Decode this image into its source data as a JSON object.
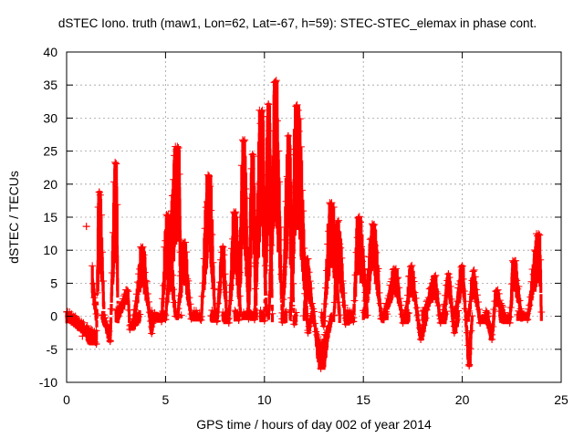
{
  "chart_data": {
    "type": "scatter",
    "title": "dSTEC Iono. truth (maw1, Lon=62, Lat=-67, h=59): STEC-STEC_elemax in phase cont.",
    "xlabel": "GPS time / hours of day 002 of year 2014",
    "ylabel": "dSTEC  / TECUs",
    "xlim": [
      0,
      25
    ],
    "ylim": [
      -10,
      40
    ],
    "xticks": [
      0,
      5,
      10,
      15,
      20,
      25
    ],
    "yticks": [
      -10,
      -5,
      0,
      5,
      10,
      15,
      20,
      25,
      30,
      35,
      40
    ],
    "grid": true,
    "marker": "plus",
    "series": [
      {
        "name": "dSTEC",
        "color": "#ff0000",
        "arcs": [
          {
            "start": 0.0,
            "peak_t": 1.65,
            "peak": 18.8,
            "end": 1.9,
            "min": -4.2,
            "dip_t": 1.5
          },
          {
            "start": 1.3,
            "peak_t": 1.0,
            "peak": 13.6,
            "end": 1.5,
            "min": -3.0,
            "dip_t": 0.8
          },
          {
            "start": 1.8,
            "peak_t": 2.5,
            "peak": 23.1,
            "end": 2.6,
            "min": -3.8,
            "dip_t": 2.2
          },
          {
            "start": 2.5,
            "peak_t": 3.1,
            "peak": 3.8,
            "end": 3.7,
            "min": -2.0,
            "dip_t": 3.2
          },
          {
            "start": 3.4,
            "peak_t": 3.8,
            "peak": 10.3,
            "end": 4.4,
            "min": -2.6,
            "dip_t": 4.3
          },
          {
            "start": 4.3,
            "peak_t": 5.1,
            "peak": 15.2,
            "end": 5.5,
            "min": -0.8,
            "dip_t": 4.8
          },
          {
            "start": 4.8,
            "peak_t": 5.65,
            "peak": 25.5,
            "end": 5.8,
            "min": -0.5,
            "dip_t": 5.0
          },
          {
            "start": 5.6,
            "peak_t": 5.9,
            "peak": 11.0,
            "end": 6.6,
            "min": -0.4,
            "dip_t": 6.3
          },
          {
            "start": 6.4,
            "peak_t": 7.2,
            "peak": 21.2,
            "end": 7.5,
            "min": -0.6,
            "dip_t": 6.8
          },
          {
            "start": 7.3,
            "peak_t": 7.9,
            "peak": 10.5,
            "end": 8.1,
            "min": -0.8,
            "dip_t": 7.6
          },
          {
            "start": 7.9,
            "peak_t": 8.5,
            "peak": 15.6,
            "end": 8.8,
            "min": -1.0,
            "dip_t": 8.2
          },
          {
            "start": 8.5,
            "peak_t": 8.95,
            "peak": 26.5,
            "end": 9.2,
            "min": -0.6,
            "dip_t": 8.7
          },
          {
            "start": 8.9,
            "peak_t": 9.4,
            "peak": 24.5,
            "end": 9.6,
            "min": -0.4,
            "dip_t": 9.2
          },
          {
            "start": 9.3,
            "peak_t": 9.85,
            "peak": 31.0,
            "end": 10.1,
            "min": -0.5,
            "dip_t": 9.5
          },
          {
            "start": 9.8,
            "peak_t": 10.2,
            "peak": 32.1,
            "end": 10.4,
            "min": -0.7,
            "dip_t": 10.0
          },
          {
            "start": 10.2,
            "peak_t": 10.55,
            "peak": 35.5,
            "end": 11.1,
            "min": -0.9,
            "dip_t": 10.9
          },
          {
            "start": 10.9,
            "peak_t": 11.2,
            "peak": 27.3,
            "end": 11.6,
            "min": -1.2,
            "dip_t": 11.5
          },
          {
            "start": 11.3,
            "peak_t": 11.6,
            "peak": 31.8,
            "end": 12.4,
            "min": -2.5,
            "dip_t": 12.2
          },
          {
            "start": 12.0,
            "peak_t": 12.1,
            "peak": 8.5,
            "end": 13.4,
            "min": -7.9,
            "dip_t": 12.85
          },
          {
            "start": 12.9,
            "peak_t": 13.35,
            "peak": 17.0,
            "end": 13.8,
            "min": -1.5,
            "dip_t": 13.0
          },
          {
            "start": 13.5,
            "peak_t": 13.7,
            "peak": 14.3,
            "end": 14.4,
            "min": -1.2,
            "dip_t": 14.1
          },
          {
            "start": 14.2,
            "peak_t": 14.75,
            "peak": 14.9,
            "end": 15.2,
            "min": -0.8,
            "dip_t": 14.5
          },
          {
            "start": 15.0,
            "peak_t": 15.5,
            "peak": 13.8,
            "end": 16.2,
            "min": -0.4,
            "dip_t": 15.9
          },
          {
            "start": 16.0,
            "peak_t": 16.6,
            "peak": 7.0,
            "end": 17.3,
            "min": -1.0,
            "dip_t": 17.0
          },
          {
            "start": 17.1,
            "peak_t": 17.4,
            "peak": 7.5,
            "end": 18.2,
            "min": -3.5,
            "dip_t": 17.9
          },
          {
            "start": 18.0,
            "peak_t": 18.6,
            "peak": 6.0,
            "end": 19.2,
            "min": -1.0,
            "dip_t": 18.9
          },
          {
            "start": 19.0,
            "peak_t": 19.3,
            "peak": 6.4,
            "end": 19.8,
            "min": -2.5,
            "dip_t": 19.6
          },
          {
            "start": 19.6,
            "peak_t": 20.0,
            "peak": 7.6,
            "end": 20.5,
            "min": -7.5,
            "dip_t": 20.35
          },
          {
            "start": 20.3,
            "peak_t": 20.55,
            "peak": 6.8,
            "end": 21.3,
            "min": -1.0,
            "dip_t": 20.9
          },
          {
            "start": 21.2,
            "peak_t": 21.7,
            "peak": 3.8,
            "end": 22.1,
            "min": -3.5,
            "dip_t": 21.5
          },
          {
            "start": 21.9,
            "peak_t": 22.6,
            "peak": 8.2,
            "end": 23.0,
            "min": -1.0,
            "dip_t": 22.4
          },
          {
            "start": 22.8,
            "peak_t": 23.9,
            "peak": 12.3,
            "end": 24.0,
            "min": -0.5,
            "dip_t": 23.3
          }
        ]
      }
    ]
  }
}
